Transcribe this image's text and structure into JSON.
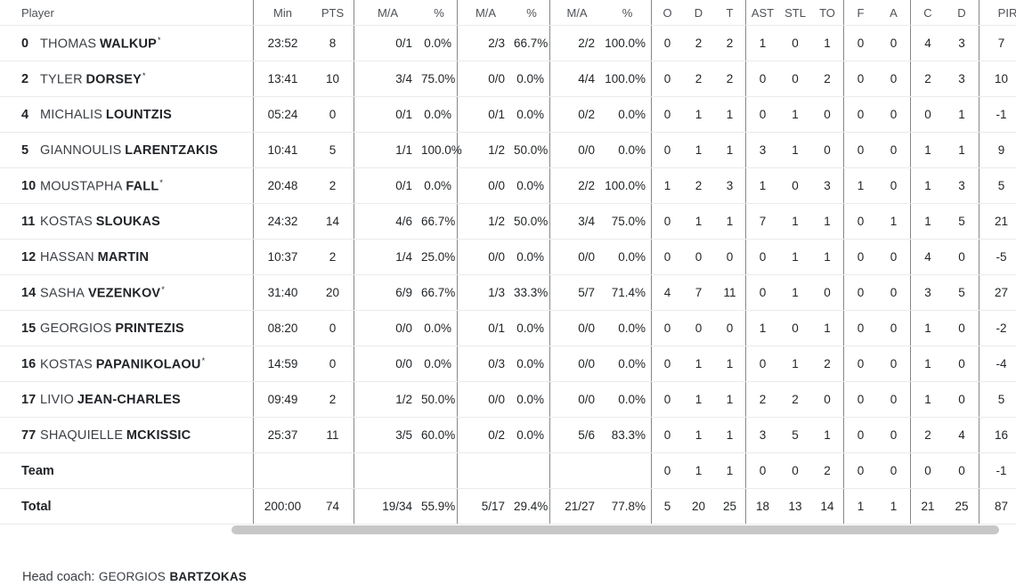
{
  "header": {
    "columns": [
      "Player",
      "Min",
      "PTS",
      "M/A",
      "%",
      "M/A",
      "%",
      "M/A",
      "%",
      "O",
      "D",
      "T",
      "AST",
      "STL",
      "TO",
      "F",
      "A",
      "C",
      "D",
      "PIR"
    ],
    "overflow_dash": "-"
  },
  "starter_mark": "*",
  "rows": [
    {
      "type": "player",
      "number": "0",
      "first": "THOMAS",
      "last": "WALKUP",
      "starter": true,
      "stats": [
        "23:52",
        "8",
        "0/1",
        "0.0%",
        "2/3",
        "66.7%",
        "2/2",
        "100.0%",
        "0",
        "2",
        "2",
        "1",
        "0",
        "1",
        "0",
        "0",
        "4",
        "3",
        "7"
      ]
    },
    {
      "type": "player",
      "number": "2",
      "first": "TYLER",
      "last": "DORSEY",
      "starter": true,
      "stats": [
        "13:41",
        "10",
        "3/4",
        "75.0%",
        "0/0",
        "0.0%",
        "4/4",
        "100.0%",
        "0",
        "2",
        "2",
        "0",
        "0",
        "2",
        "0",
        "0",
        "2",
        "3",
        "10"
      ]
    },
    {
      "type": "player",
      "number": "4",
      "first": "MICHALIS",
      "last": "LOUNTZIS",
      "starter": false,
      "stats": [
        "05:24",
        "0",
        "0/1",
        "0.0%",
        "0/1",
        "0.0%",
        "0/2",
        "0.0%",
        "0",
        "1",
        "1",
        "0",
        "1",
        "0",
        "0",
        "0",
        "0",
        "1",
        "-1"
      ]
    },
    {
      "type": "player",
      "number": "5",
      "first": "GIANNOULIS",
      "last": "LARENTZAKIS",
      "starter": false,
      "stats": [
        "10:41",
        "5",
        "1/1",
        "100.0%",
        "1/2",
        "50.0%",
        "0/0",
        "0.0%",
        "0",
        "1",
        "1",
        "3",
        "1",
        "0",
        "0",
        "0",
        "1",
        "1",
        "9"
      ]
    },
    {
      "type": "player",
      "number": "10",
      "first": "MOUSTAPHA",
      "last": "FALL",
      "starter": true,
      "stats": [
        "20:48",
        "2",
        "0/1",
        "0.0%",
        "0/0",
        "0.0%",
        "2/2",
        "100.0%",
        "1",
        "2",
        "3",
        "1",
        "0",
        "3",
        "1",
        "0",
        "1",
        "3",
        "5"
      ]
    },
    {
      "type": "player",
      "number": "11",
      "first": "KOSTAS",
      "last": "SLOUKAS",
      "starter": false,
      "stats": [
        "24:32",
        "14",
        "4/6",
        "66.7%",
        "1/2",
        "50.0%",
        "3/4",
        "75.0%",
        "0",
        "1",
        "1",
        "7",
        "1",
        "1",
        "0",
        "1",
        "1",
        "5",
        "21"
      ]
    },
    {
      "type": "player",
      "number": "12",
      "first": "HASSAN",
      "last": "MARTIN",
      "starter": false,
      "stats": [
        "10:37",
        "2",
        "1/4",
        "25.0%",
        "0/0",
        "0.0%",
        "0/0",
        "0.0%",
        "0",
        "0",
        "0",
        "0",
        "1",
        "1",
        "0",
        "0",
        "4",
        "0",
        "-5"
      ]
    },
    {
      "type": "player",
      "number": "14",
      "first": "SASHA",
      "last": "VEZENKOV",
      "starter": true,
      "stats": [
        "31:40",
        "20",
        "6/9",
        "66.7%",
        "1/3",
        "33.3%",
        "5/7",
        "71.4%",
        "4",
        "7",
        "11",
        "0",
        "1",
        "0",
        "0",
        "0",
        "3",
        "5",
        "27"
      ]
    },
    {
      "type": "player",
      "number": "15",
      "first": "GEORGIOS",
      "last": "PRINTEZIS",
      "starter": false,
      "stats": [
        "08:20",
        "0",
        "0/0",
        "0.0%",
        "0/1",
        "0.0%",
        "0/0",
        "0.0%",
        "0",
        "0",
        "0",
        "1",
        "0",
        "1",
        "0",
        "0",
        "1",
        "0",
        "-2"
      ]
    },
    {
      "type": "player",
      "number": "16",
      "first": "KOSTAS",
      "last": "PAPANIKOLAOU",
      "starter": true,
      "stats": [
        "14:59",
        "0",
        "0/0",
        "0.0%",
        "0/3",
        "0.0%",
        "0/0",
        "0.0%",
        "0",
        "1",
        "1",
        "0",
        "1",
        "2",
        "0",
        "0",
        "1",
        "0",
        "-4"
      ]
    },
    {
      "type": "player",
      "number": "17",
      "first": "LIVIO",
      "last": "JEAN-CHARLES",
      "starter": false,
      "stats": [
        "09:49",
        "2",
        "1/2",
        "50.0%",
        "0/0",
        "0.0%",
        "0/0",
        "0.0%",
        "0",
        "1",
        "1",
        "2",
        "2",
        "0",
        "0",
        "0",
        "1",
        "0",
        "5"
      ]
    },
    {
      "type": "player",
      "number": "77",
      "first": "SHAQUIELLE",
      "last": "MCKISSIC",
      "starter": false,
      "stats": [
        "25:37",
        "11",
        "3/5",
        "60.0%",
        "0/2",
        "0.0%",
        "5/6",
        "83.3%",
        "0",
        "1",
        "1",
        "3",
        "5",
        "1",
        "0",
        "0",
        "2",
        "4",
        "16"
      ]
    },
    {
      "type": "label",
      "label": "Team",
      "stats": [
        "",
        "",
        "",
        "",
        "",
        "",
        "",
        "",
        "0",
        "1",
        "1",
        "0",
        "0",
        "2",
        "0",
        "0",
        "0",
        "0",
        "-1"
      ]
    },
    {
      "type": "label",
      "label": "Total",
      "stats": [
        "200:00",
        "74",
        "19/34",
        "55.9%",
        "5/17",
        "29.4%",
        "21/27",
        "77.8%",
        "5",
        "20",
        "25",
        "18",
        "13",
        "14",
        "1",
        "1",
        "21",
        "25",
        "87"
      ]
    }
  ],
  "footer": {
    "head_coach_label": "Head coach:",
    "coach_first_name": "GEORGIOS",
    "coach_last_name": "BARTZOKAS"
  }
}
